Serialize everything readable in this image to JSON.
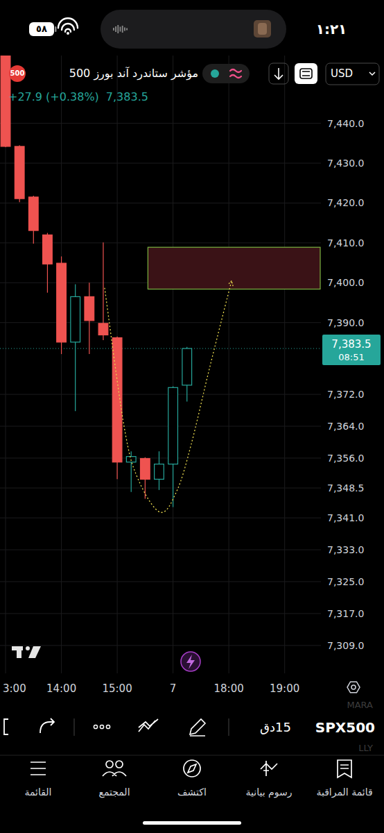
{
  "status_bar": {
    "time": "١:٢١",
    "battery": "٥٨"
  },
  "header": {
    "symbol_badge": "500",
    "title": "مؤشر ستاندرد آند بورز 500",
    "currency": "USD",
    "change": "+27.9 (+0.38%)",
    "last": "7,383.5"
  },
  "chart_data": {
    "type": "candlestick",
    "categories": [
      "3:00",
      null,
      null,
      null,
      "14:00",
      null,
      null,
      null,
      "15:00",
      null,
      null,
      null,
      "7",
      null,
      null,
      null,
      "18:00",
      null,
      null,
      null,
      "19:00",
      null,
      null
    ],
    "open": [
      7458,
      7434.2,
      7421.5,
      7412.0,
      7404.9,
      7385.1,
      7396.5,
      7389.8,
      7386.2,
      7355.0,
      7355.9,
      7350.7,
      7354.5,
      7374.3,
      null,
      null,
      null,
      null,
      null,
      null,
      null,
      null,
      null
    ],
    "high": [
      7460,
      7434.5,
      7421.8,
      7412.5,
      7406.6,
      7399.6,
      7400.0,
      7410.1,
      7386.5,
      7357.7,
      7356.2,
      7357.7,
      7374.0,
      7383.9,
      null,
      null,
      null,
      null,
      null,
      null,
      null,
      null,
      null
    ],
    "low": [
      7434.0,
      7420.2,
      7409.8,
      7397.5,
      7382.1,
      7367.8,
      7382.1,
      7385.6,
      7350.7,
      7347.5,
      7345.8,
      7348.0,
      7343.7,
      7370.2,
      null,
      null,
      null,
      null,
      null,
      null,
      null,
      null,
      null
    ],
    "close": [
      7434.2,
      7421.1,
      7413.1,
      7404.7,
      7385.1,
      7396.5,
      7390.5,
      7386.9,
      7355.0,
      7356.4,
      7350.7,
      7354.5,
      7373.7,
      7383.5,
      null,
      null,
      null,
      null,
      null,
      null,
      null,
      null,
      null
    ],
    "ylim": [
      7302,
      7457
    ],
    "yticks": [
      {
        "value": 7440,
        "label": "7,440.0"
      },
      {
        "value": 7430,
        "label": "7,430.0"
      },
      {
        "value": 7420,
        "label": "7,420.0"
      },
      {
        "value": 7410,
        "label": "7,410.0"
      },
      {
        "value": 7400,
        "label": "7,400.0"
      },
      {
        "value": 7390,
        "label": "7,390.0"
      },
      {
        "value": 7372,
        "label": "7,372.0"
      },
      {
        "value": 7364,
        "label": "7,364.0"
      },
      {
        "value": 7356,
        "label": "7,356.0"
      },
      {
        "value": 7348.5,
        "label": "7,348.5"
      },
      {
        "value": 7341,
        "label": "7,341.0"
      },
      {
        "value": 7333,
        "label": "7,333.0"
      },
      {
        "value": 7325,
        "label": "7,325.0"
      },
      {
        "value": 7317,
        "label": "7,317.0"
      },
      {
        "value": 7309,
        "label": "7,309.0"
      }
    ],
    "grid": true,
    "last_price": {
      "value": 7383.5,
      "label": "7,383.5",
      "countdown": "08:51"
    },
    "zone": {
      "from": 7398.4,
      "to": 7408.9,
      "start": 10.2
    },
    "projection": {
      "x": [
        7.1,
        8.5,
        9.5,
        11.1,
        12.3,
        13.3,
        14.5,
        15.5,
        16.2
      ],
      "values": [
        7398.7,
        7363.8,
        7350.7,
        7342.4,
        7348.0,
        7359.4,
        7376.9,
        7390.9,
        7400.5
      ]
    }
  },
  "toolbar": {
    "symbol": "SPX500",
    "interval": "15دق"
  },
  "background_list": [
    "MARA",
    "LLY"
  ],
  "nav": [
    "قائمة المراقبة",
    "رسوم بيانية",
    "اكتشف",
    "المجتمع",
    "القائمة"
  ]
}
